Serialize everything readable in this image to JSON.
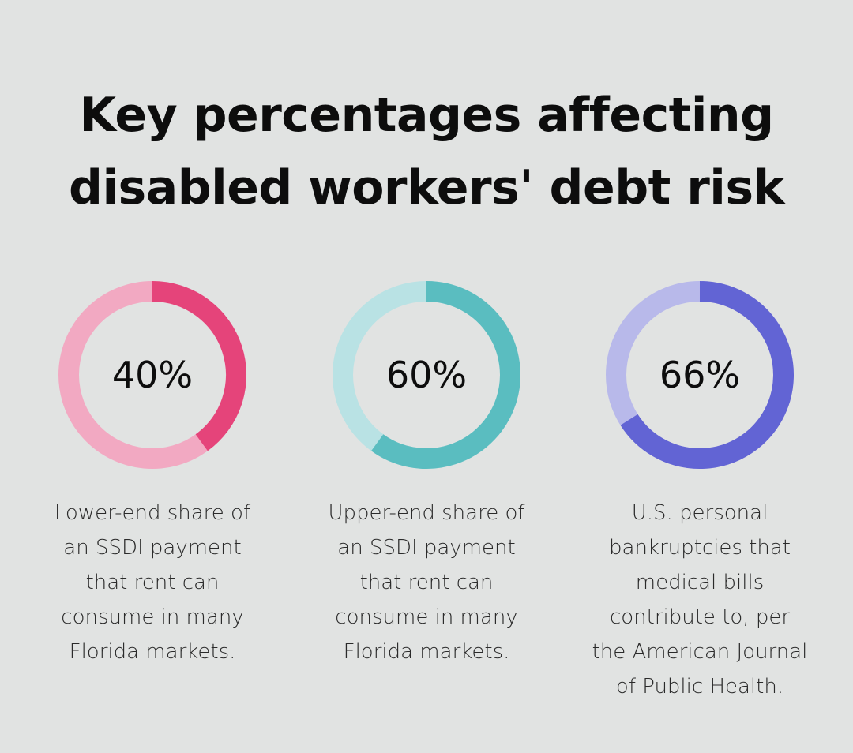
{
  "title_lines": [
    "Key percentages affecting",
    "disabled workers' debt risk"
  ],
  "chart_data": [
    {
      "type": "pie",
      "value": 40,
      "label": "40%",
      "colors": {
        "filled": "#e5447a",
        "track": "#f2a9c2"
      },
      "description_lines": [
        "Lower-end share of",
        "an SSDI payment",
        "that rent can",
        "consume in many",
        "Florida markets."
      ]
    },
    {
      "type": "pie",
      "value": 60,
      "label": "60%",
      "colors": {
        "filled": "#5abdc0",
        "track": "#b9e2e4"
      },
      "description_lines": [
        "Upper-end share of",
        "an SSDI payment",
        "that rent can",
        "consume in many",
        "Florida markets."
      ]
    },
    {
      "type": "pie",
      "value": 66,
      "label": "66%",
      "colors": {
        "filled": "#6264d4",
        "track": "#b8b9ea"
      },
      "description_lines": [
        "U.S. personal",
        "bankruptcies that",
        "medical bills",
        "contribute to, per",
        "the American Journal",
        "of Public Health."
      ]
    }
  ]
}
